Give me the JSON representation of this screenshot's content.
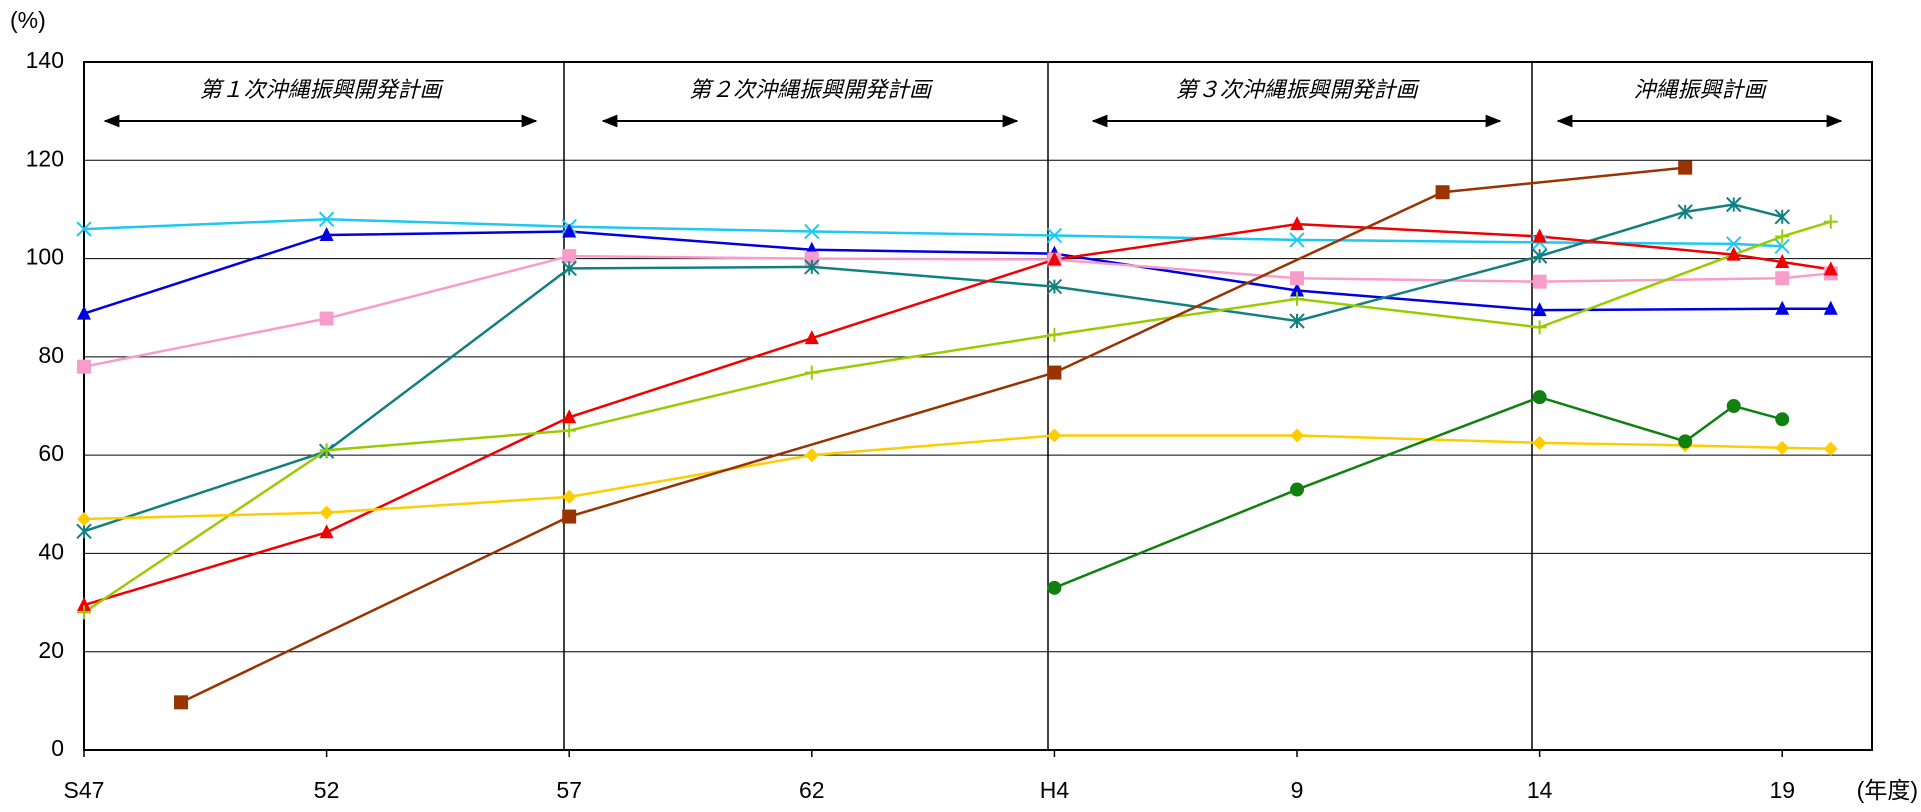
{
  "chart_data": {
    "type": "line",
    "y_label": "(%)",
    "x_label": "(年度)",
    "xlim": [
      1972,
      2008.85
    ],
    "ylim": [
      0,
      140
    ],
    "xticks": [
      {
        "value": 1972,
        "label": "S47"
      },
      {
        "value": 1977,
        "label": "52"
      },
      {
        "value": 1982,
        "label": "57"
      },
      {
        "value": 1987,
        "label": "62"
      },
      {
        "value": 1992,
        "label": "H4"
      },
      {
        "value": 1997,
        "label": "9"
      },
      {
        "value": 2002,
        "label": "14"
      },
      {
        "value": 2007,
        "label": "19"
      }
    ],
    "yticks": [
      0,
      20,
      40,
      60,
      80,
      100,
      120,
      140
    ],
    "grid": true,
    "periods": [
      "第１次沖縄振興開発計画",
      "第２次沖縄振興開発計画",
      "第３次沖縄振興開発計画",
      "沖縄振興計画"
    ],
    "series": [
      {
        "color": "#1ec8f0",
        "marker": "x",
        "x": [
          1972,
          1977,
          1982,
          1987,
          1992,
          1997,
          2002,
          2006,
          2007
        ],
        "values": [
          106,
          108,
          106.5,
          105.5,
          104.7,
          103.8,
          103.3,
          103,
          102.5
        ]
      },
      {
        "color": "#0000e0",
        "marker": "triangle",
        "x": [
          1972,
          1977,
          1982,
          1987,
          1992,
          1997,
          2002,
          2007,
          2008
        ],
        "values": [
          88.8,
          104.8,
          105.5,
          101.8,
          101,
          93.5,
          89.5,
          89.8,
          89.8
        ]
      },
      {
        "color": "#f89ccc",
        "marker": "square",
        "x": [
          1972,
          1977,
          1982,
          1987,
          1992,
          1997,
          2002,
          2007,
          2008
        ],
        "values": [
          78,
          87.8,
          100.5,
          100,
          99.8,
          96,
          95.3,
          96,
          97
        ]
      },
      {
        "color": "#128080",
        "marker": "asterisk",
        "x": [
          1972,
          1977,
          1982,
          1987,
          1992,
          1997,
          2002,
          2005,
          2006,
          2007
        ],
        "values": [
          44.5,
          60.8,
          98,
          98.3,
          94.3,
          87.3,
          100.5,
          109.5,
          111,
          108.5
        ]
      },
      {
        "color": "#f00000",
        "marker": "triangle",
        "x": [
          1972,
          1977,
          1982,
          1987,
          1992,
          1997,
          2002,
          2006,
          2007,
          2008
        ],
        "values": [
          29.5,
          44.3,
          67.7,
          83.8,
          99.8,
          107,
          104.5,
          100.8,
          99.3,
          97.8
        ]
      },
      {
        "color": "#99cc00",
        "marker": "plus",
        "x": [
          1972,
          1977,
          1982,
          1987,
          1992,
          1997,
          2002,
          2007,
          2008
        ],
        "values": [
          28,
          61,
          65,
          76.8,
          84.5,
          91.8,
          86,
          104.5,
          107.5
        ]
      },
      {
        "color": "#ffcc00",
        "marker": "diamond",
        "x": [
          1972,
          1977,
          1982,
          1987,
          1992,
          1997,
          2002,
          2005,
          2007,
          2008
        ],
        "values": [
          47,
          48.3,
          51.5,
          60,
          64,
          64,
          62.5,
          62,
          61.5,
          61.3
        ]
      },
      {
        "color": "#993300",
        "marker": "square",
        "x": [
          1974,
          1982,
          1992,
          2000,
          2005
        ],
        "values": [
          9.7,
          47.5,
          76.8,
          113.5,
          118.5
        ]
      },
      {
        "color": "#108010",
        "marker": "circle",
        "x": [
          1992,
          1997,
          2002,
          2005,
          2006,
          2007
        ],
        "values": [
          33,
          53,
          71.8,
          62.8,
          70,
          67.3
        ]
      }
    ]
  }
}
